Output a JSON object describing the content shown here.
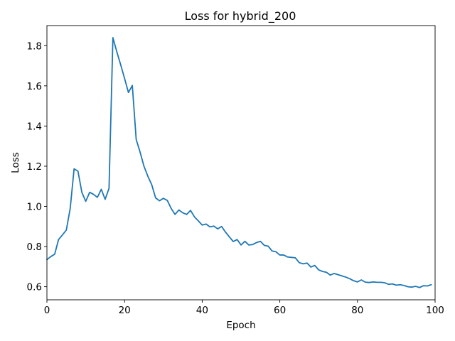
{
  "chart_data": {
    "type": "line",
    "title": "Loss for hybrid_200",
    "xlabel": "Epoch",
    "ylabel": "Loss",
    "xlim": [
      0,
      100
    ],
    "ylim": [
      0.535,
      1.9
    ],
    "x_ticks": [
      0,
      20,
      40,
      60,
      80,
      100
    ],
    "y_ticks": [
      0.6,
      0.8,
      1.0,
      1.2,
      1.4,
      1.6,
      1.8
    ],
    "grid": false,
    "color": "#1f77b4",
    "series": [
      {
        "x": [
          0,
          1,
          2,
          3,
          4,
          5,
          6,
          7,
          8,
          9,
          10,
          11,
          12,
          13,
          14,
          15,
          16,
          17,
          18,
          19,
          20,
          21,
          22,
          23,
          24,
          25,
          26,
          27,
          28,
          29,
          30,
          31,
          32,
          33,
          34,
          35,
          36,
          37,
          38,
          39,
          40,
          41,
          42,
          43,
          44,
          45,
          46,
          47,
          48,
          49,
          50,
          51,
          52,
          53,
          54,
          55,
          56,
          57,
          58,
          59,
          60,
          61,
          62,
          63,
          64,
          65,
          66,
          67,
          68,
          69,
          70,
          71,
          72,
          73,
          74,
          75,
          76,
          77,
          78,
          79,
          80,
          81,
          82,
          83,
          84,
          85,
          86,
          87,
          88,
          89,
          90,
          91,
          92,
          93,
          94,
          95,
          96,
          97,
          98,
          99
        ],
        "y": [
          0.735,
          0.75,
          0.762,
          0.835,
          0.858,
          0.882,
          0.99,
          1.187,
          1.175,
          1.07,
          1.025,
          1.07,
          1.06,
          1.045,
          1.085,
          1.035,
          1.09,
          1.84,
          1.77,
          1.705,
          1.637,
          1.567,
          1.602,
          1.333,
          1.27,
          1.2,
          1.15,
          1.108,
          1.042,
          1.028,
          1.04,
          1.03,
          0.99,
          0.96,
          0.982,
          0.968,
          0.96,
          0.98,
          0.948,
          0.928,
          0.907,
          0.912,
          0.898,
          0.902,
          0.888,
          0.9,
          0.872,
          0.848,
          0.825,
          0.835,
          0.808,
          0.826,
          0.808,
          0.81,
          0.82,
          0.826,
          0.806,
          0.802,
          0.778,
          0.774,
          0.758,
          0.758,
          0.748,
          0.746,
          0.744,
          0.72,
          0.714,
          0.718,
          0.698,
          0.706,
          0.684,
          0.676,
          0.672,
          0.658,
          0.666,
          0.66,
          0.654,
          0.648,
          0.64,
          0.63,
          0.624,
          0.634,
          0.623,
          0.621,
          0.624,
          0.622,
          0.622,
          0.62,
          0.612,
          0.614,
          0.608,
          0.61,
          0.606,
          0.6,
          0.598,
          0.602,
          0.596,
          0.605,
          0.604,
          0.61
        ]
      }
    ]
  }
}
